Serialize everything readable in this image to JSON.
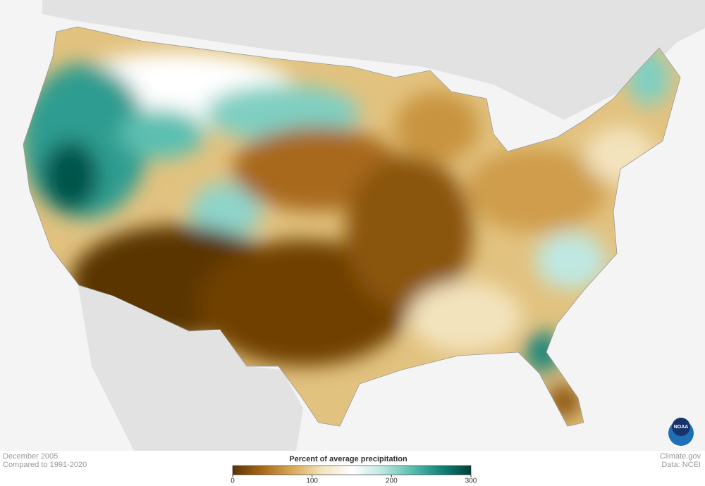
{
  "map": {
    "legend": {
      "title": "Percent of average precipitation",
      "lim": [
        0,
        300
      ],
      "ticks": [
        0,
        100,
        200,
        300
      ],
      "colors": [
        "#5a3405",
        "#a8691a",
        "#d9a956",
        "#f3e3bd",
        "#ffffff",
        "#bfe8e2",
        "#5cbfb1",
        "#12847a",
        "#023f38"
      ]
    },
    "footer": {
      "date": "December 2005",
      "baseline": "Compared to 1991-2020",
      "source": "Climate.gov",
      "data": "Data: NCEI"
    },
    "logo": "NOAA"
  }
}
